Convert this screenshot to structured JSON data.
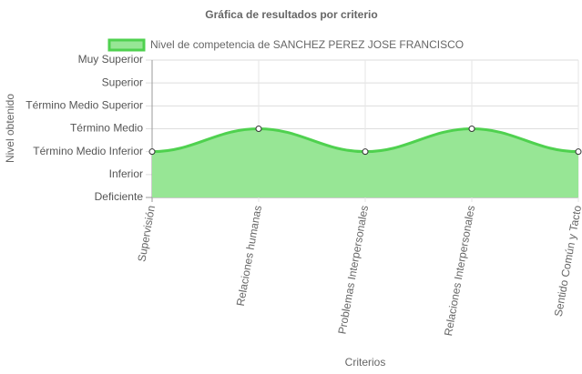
{
  "chart_data": {
    "type": "area",
    "title": "Gráfica de resultados por criterio",
    "x_label": "Criterios",
    "y_label": "Nivel obtenido",
    "categories": [
      "Supervisión",
      "Relaciones humanas",
      "Problemas Interpersonales",
      "Relaciones Interpersonales",
      "Sentido Común y Tacto"
    ],
    "series": [
      {
        "name": "Nivel de competencia de SANCHEZ PEREZ JOSE FRANCISCO",
        "color": "#4fd14f",
        "fill": "#97e695",
        "values": [
          2,
          3,
          2,
          3,
          2
        ]
      }
    ],
    "ylim": [
      0,
      6
    ],
    "yticks": [
      {
        "value": 0,
        "label": "Deficiente"
      },
      {
        "value": 1,
        "label": "Inferior"
      },
      {
        "value": 2,
        "label": "Término Medio Inferior"
      },
      {
        "value": 3,
        "label": "Término Medio"
      },
      {
        "value": 4,
        "label": "Término Medio Superior"
      },
      {
        "value": 5,
        "label": "Superior"
      },
      {
        "value": 6,
        "label": "Muy Superior"
      }
    ],
    "grid": true,
    "legend": "top"
  }
}
